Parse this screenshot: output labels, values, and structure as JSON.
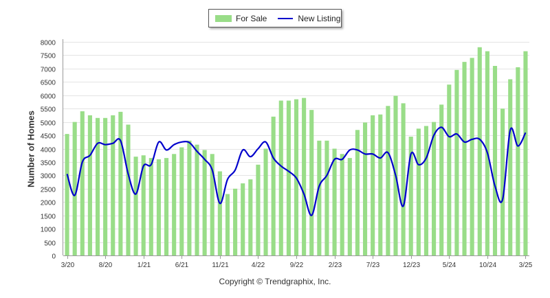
{
  "chart_data": {
    "type": "bar",
    "ylabel": "Number of Homes",
    "xlabel": "",
    "ylim": [
      0,
      8000
    ],
    "yticks": [
      0,
      500,
      1000,
      1500,
      2000,
      2500,
      3000,
      3500,
      4000,
      4500,
      5000,
      5500,
      6000,
      6500,
      7000,
      7500,
      8000
    ],
    "grid": true,
    "legend_position": "top-center",
    "xtick_labels": [
      {
        "index": 0,
        "label": "3/20"
      },
      {
        "index": 5,
        "label": "8/20"
      },
      {
        "index": 10,
        "label": "1/21"
      },
      {
        "index": 15,
        "label": "6/21"
      },
      {
        "index": 20,
        "label": "11/21"
      },
      {
        "index": 25,
        "label": "4/22"
      },
      {
        "index": 30,
        "label": "9/22"
      },
      {
        "index": 35,
        "label": "2/23"
      },
      {
        "index": 40,
        "label": "7/23"
      },
      {
        "index": 45,
        "label": "12/23"
      },
      {
        "index": 50,
        "label": "5/24"
      },
      {
        "index": 55,
        "label": "10/24"
      },
      {
        "index": 60,
        "label": "3/25"
      }
    ],
    "series": [
      {
        "name": "For Sale",
        "type": "bar",
        "color": "#99dd88",
        "values": [
          4550,
          5000,
          5400,
          5250,
          5150,
          5150,
          5250,
          5380,
          4900,
          3700,
          3750,
          3650,
          3600,
          3650,
          3800,
          4050,
          4300,
          4150,
          3950,
          3800,
          3150,
          2300,
          2500,
          2700,
          2850,
          3400,
          4000,
          5200,
          5800,
          5800,
          5850,
          5900,
          5450,
          4300,
          4300,
          4000,
          3800,
          3650,
          4700,
          4980,
          5250,
          5280,
          5600,
          5980,
          5700,
          4450,
          4750,
          4850,
          5000,
          5650,
          6400,
          6950,
          7250,
          7400,
          7800,
          7650,
          7100,
          5500,
          6600,
          7050,
          7650
        ]
      },
      {
        "name": "New Listing",
        "type": "line",
        "color": "#0000cc",
        "values": [
          3050,
          2250,
          3500,
          3750,
          4200,
          4150,
          4200,
          4300,
          3050,
          2300,
          3350,
          3400,
          4250,
          3950,
          4150,
          4250,
          4230,
          3900,
          3600,
          3200,
          1950,
          2850,
          3200,
          3950,
          3700,
          4000,
          4250,
          3650,
          3350,
          3150,
          2900,
          2300,
          1500,
          2600,
          3000,
          3600,
          3600,
          3950,
          3950,
          3800,
          3800,
          3650,
          3850,
          3000,
          1850,
          3800,
          3400,
          3650,
          4500,
          4800,
          4450,
          4550,
          4250,
          4350,
          4350,
          3850,
          2600,
          2100,
          4700,
          4100,
          4600
        ]
      }
    ]
  },
  "legend": {
    "for_sale_label": "For Sale",
    "new_listing_label": "New Listing"
  },
  "copyright": "Copyright © Trendgraphix, Inc."
}
